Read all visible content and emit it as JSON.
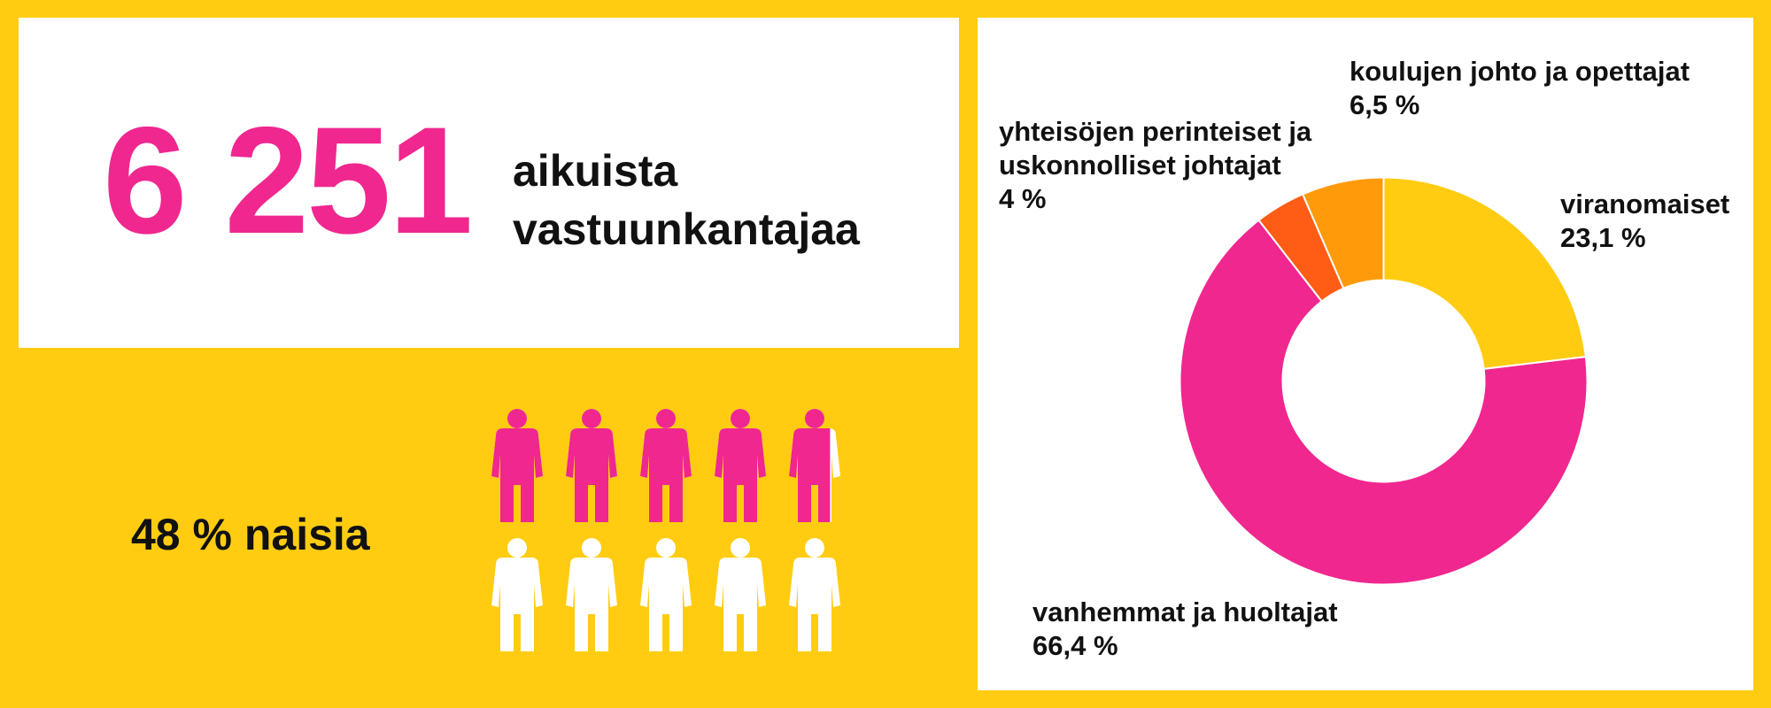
{
  "stat": {
    "number": "6 251",
    "caption_line1": "aikuista",
    "caption_line2": "vastuunkantajaa"
  },
  "women": {
    "label": "48 % naisia",
    "share_percent": 48,
    "icon_count": 10,
    "colors": {
      "women": "#f0278f",
      "men": "#ffffff"
    }
  },
  "colors": {
    "background": "#ffcc12",
    "panel": "#ffffff",
    "accent": "#f0278f"
  },
  "chart_data": {
    "type": "pie",
    "donut": true,
    "categories": [
      "viranomaiset",
      "vanhemmat ja huoltajat",
      "yhteisöjen perinteiset ja uskonnolliset johtajat",
      "koulujen johto ja opettajat"
    ],
    "values": [
      23.1,
      66.4,
      4,
      6.5
    ],
    "value_labels": [
      "23,1 %",
      "66,4 %",
      "4 %",
      "6,5 %"
    ],
    "label_lines": [
      [
        "viranomaiset"
      ],
      [
        "vanhemmat ja huoltajat"
      ],
      [
        "yhteisöjen perinteiset ja",
        "uskonnolliset johtajat"
      ],
      [
        "koulujen johto ja opettajat"
      ]
    ],
    "colors": [
      "#ffcc12",
      "#f0278f",
      "#ff5c15",
      "#ff9a0a"
    ],
    "legend": "none",
    "title": ""
  }
}
